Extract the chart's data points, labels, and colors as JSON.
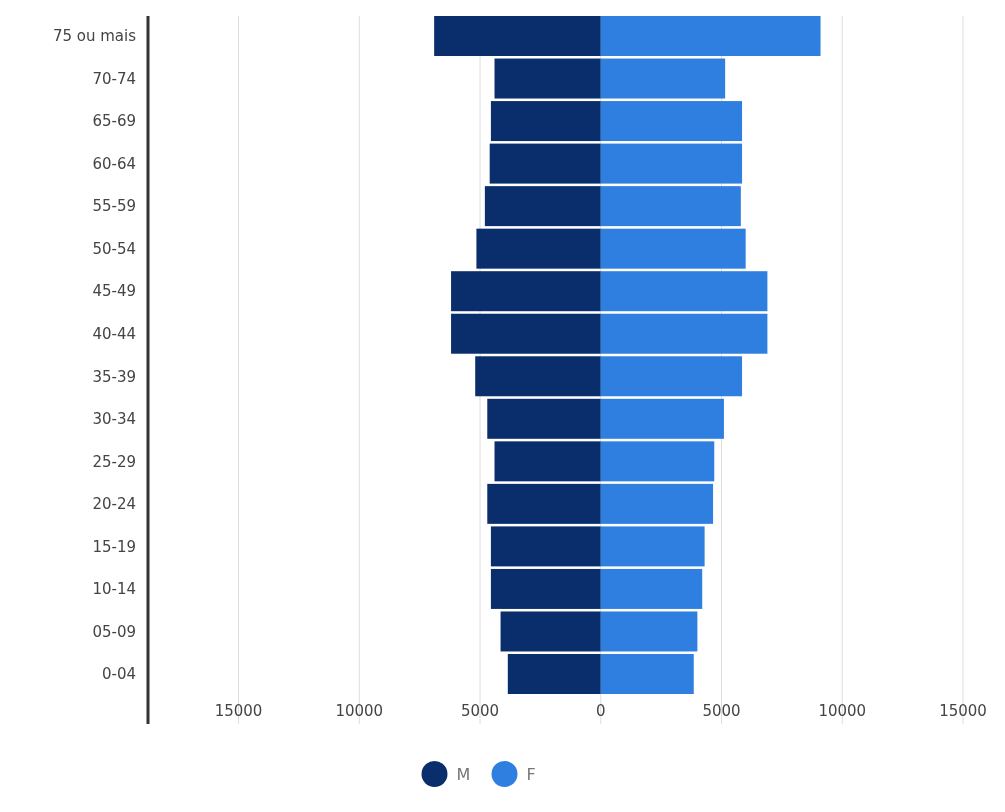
{
  "chart_data": {
    "type": "bar",
    "orientation": "horizontal",
    "categories": [
      "75 ou mais",
      "70-74",
      "65-69",
      "60-64",
      "55-59",
      "50-54",
      "45-49",
      "40-44",
      "35-39",
      "30-34",
      "25-29",
      "20-24",
      "15-19",
      "10-14",
      "05-09",
      "0-04"
    ],
    "series": [
      {
        "name": "M",
        "color": "#0a2d6b",
        "values": [
          -6900,
          -4400,
          -4550,
          -4600,
          -4800,
          -5150,
          -6200,
          -6200,
          -5200,
          -4700,
          -4400,
          -4700,
          -4550,
          -4550,
          -4150,
          -3850
        ]
      },
      {
        "name": "F",
        "color": "#2f7fe0",
        "values": [
          9100,
          5150,
          5850,
          5850,
          5800,
          6000,
          6900,
          6900,
          5850,
          5100,
          4700,
          4650,
          4300,
          4200,
          4000,
          3850
        ]
      }
    ],
    "xlim": [
      -18750,
      15000
    ],
    "xticks": [
      {
        "value": -15000,
        "label": "15000"
      },
      {
        "value": -10000,
        "label": "10000"
      },
      {
        "value": -5000,
        "label": "5000"
      },
      0,
      5000,
      10000,
      15000
    ],
    "grid": "x",
    "legend": "bottom",
    "stacked": true
  }
}
